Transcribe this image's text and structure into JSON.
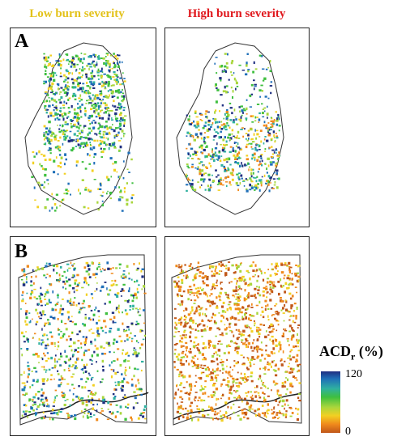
{
  "columns": {
    "low": {
      "label": "Low burn severity",
      "color": "#e3c21a"
    },
    "high": {
      "label": "High burn severity",
      "color": "#e0181d"
    }
  },
  "rows": [
    {
      "label": "A"
    },
    {
      "label": "B"
    }
  ],
  "legend": {
    "title_main": "ACD",
    "title_sub": "r",
    "title_unit": " (%)",
    "max_label": "120",
    "min_label": "0",
    "colors": [
      "#1f2f80",
      "#1f6fb8",
      "#2fb0a0",
      "#3fbf3f",
      "#a8d63c",
      "#f2d022",
      "#f08a1c",
      "#c0571a"
    ]
  }
}
